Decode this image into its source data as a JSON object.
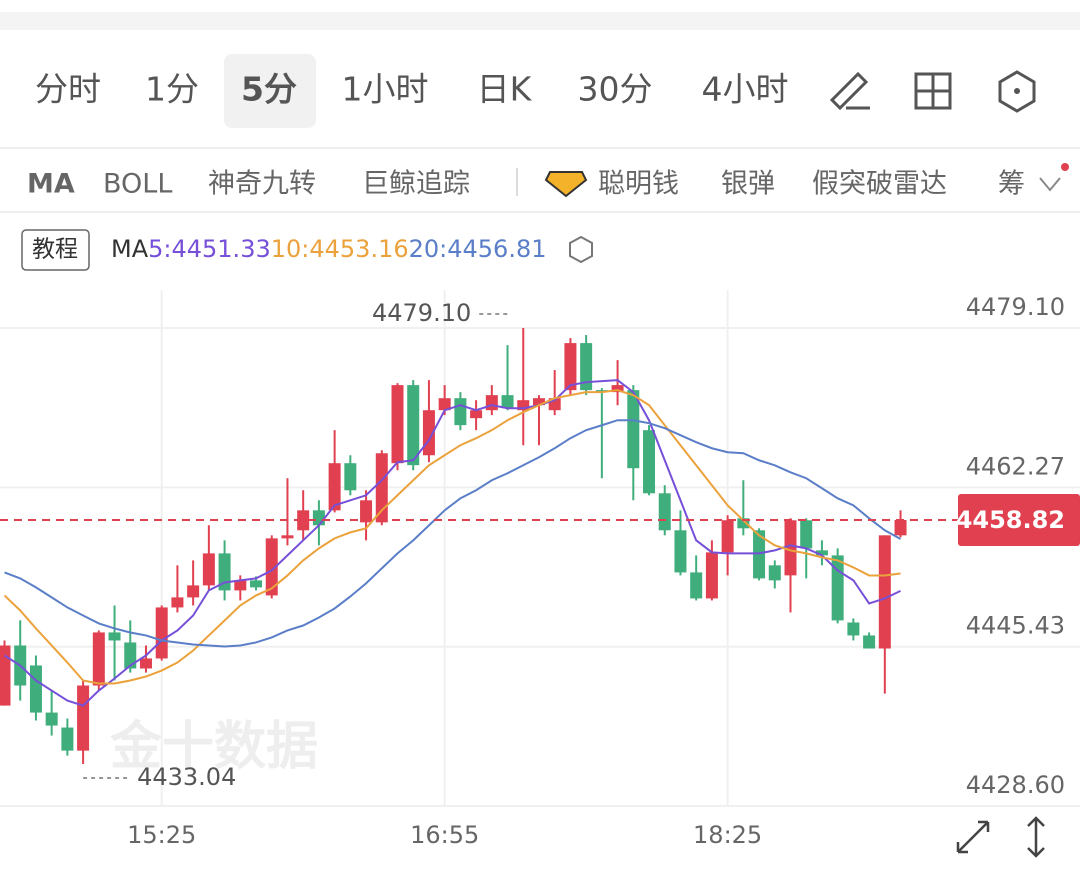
{
  "tabs": [
    "分时",
    "1分",
    "5分",
    "1小时",
    "日K",
    "30分",
    "4小时"
  ],
  "selected_tab": 2,
  "tools": [
    "MA",
    "BOLL",
    "神奇九转",
    "巨鲸追踪",
    "聪明钱",
    "银弹",
    "假突破雷达",
    "筹"
  ],
  "tutorial": "教程",
  "watermark": "金十数据",
  "chart_data": {
    "type": "candlestick",
    "indicator": "MA",
    "categories": [
      null,
      null,
      null,
      null,
      null,
      null,
      null,
      null,
      null,
      null,
      "15:25",
      null,
      null,
      null,
      null,
      null,
      null,
      null,
      null,
      null,
      null,
      null,
      null,
      null,
      null,
      null,
      null,
      null,
      "16:55",
      null,
      null,
      null,
      null,
      null,
      null,
      null,
      null,
      null,
      null,
      null,
      null,
      null,
      null,
      null,
      null,
      null,
      "18:25",
      null,
      null,
      null,
      null,
      null,
      null,
      null,
      null,
      null,
      null,
      null
    ],
    "candles": {
      "open": [
        4439.21,
        4445.56,
        4443.45,
        4438.47,
        4436.89,
        4434.45,
        4441.33,
        4446.94,
        4445.88,
        4443.13,
        4444.19,
        4449.58,
        4450.64,
        4451.91,
        4455.29,
        4451.38,
        4452.44,
        4450.85,
        4456.88,
        4457.73,
        4459.84,
        4459.84,
        4464.82,
        4458.57,
        4458.57,
        4464.82,
        4473.07,
        4465.66,
        4470.42,
        4471.69,
        4469.58,
        4470.42,
        4472.01,
        4470.42,
        4470.95,
        4470.42,
        4472.54,
        4477.51,
        4472.54,
        4472.33,
        4472.54,
        4468.31,
        4461.64,
        4457.73,
        4453.28,
        4450.53,
        4455.4,
        4459.0,
        4457.73,
        4454.03,
        4452.97,
        4458.79,
        4455.61,
        4455.08,
        4447.99,
        4446.62,
        4445.24,
        4457.2
      ],
      "high": [
        4446.09,
        4448.21,
        4444.5,
        4440.8,
        4437.84,
        4441.86,
        4447.15,
        4449.79,
        4448.21,
        4445.56,
        4449.79,
        4454.03,
        4454.55,
        4458.26,
        4456.67,
        4452.97,
        4452.86,
        4457.2,
        4463.23,
        4461.96,
        4460.9,
        4468.31,
        4465.66,
        4461.96,
        4466.19,
        4473.28,
        4473.6,
        4473.6,
        4473.07,
        4472.33,
        4471.48,
        4473.07,
        4477.3,
        4479.1,
        4472.01,
        4474.66,
        4478.04,
        4478.36,
        4472.75,
        4475.71,
        4473.07,
        4468.84,
        4462.49,
        4459.84,
        4455.08,
        4456.67,
        4459.32,
        4463.02,
        4457.94,
        4454.55,
        4459.0,
        4459.0,
        4456.67,
        4455.82,
        4448.42,
        4446.94,
        4457.2,
        4459.84
      ],
      "low": [
        4439.21,
        4439.74,
        4437.63,
        4436.04,
        4433.92,
        4433.04,
        4440.8,
        4441.86,
        4442.7,
        4442.7,
        4443.97,
        4449.05,
        4449.79,
        4451.38,
        4450.32,
        4450.32,
        4451.38,
        4450.53,
        4456.14,
        4456.67,
        4456.14,
        4459.63,
        4461.43,
        4456.67,
        4458.26,
        4464.08,
        4464.08,
        4464.92,
        4469.9,
        4468.31,
        4468.31,
        4469.9,
        4470.42,
        4466.72,
        4466.72,
        4469.9,
        4472.01,
        4472.01,
        4463.23,
        4470.95,
        4460.9,
        4461.43,
        4457.2,
        4452.97,
        4450.32,
        4450.32,
        4452.97,
        4457.2,
        4452.44,
        4451.59,
        4449.05,
        4452.65,
        4454.03,
        4447.89,
        4446.09,
        4445.24,
        4440.48,
        4456.99
      ],
      "close": [
        4445.56,
        4441.33,
        4438.47,
        4437.1,
        4434.45,
        4441.33,
        4446.94,
        4446.09,
        4443.13,
        4444.19,
        4449.58,
        4450.64,
        4451.91,
        4455.29,
        4451.38,
        4452.44,
        4451.7,
        4456.88,
        4457.2,
        4459.84,
        4458.26,
        4464.82,
        4461.96,
        4460.9,
        4465.87,
        4473.07,
        4464.61,
        4470.42,
        4471.69,
        4468.84,
        4470.42,
        4472.01,
        4470.64,
        4471.48,
        4471.69,
        4471.69,
        4477.51,
        4472.54,
        4472.33,
        4473.07,
        4464.29,
        4461.64,
        4457.73,
        4453.28,
        4450.53,
        4455.4,
        4458.79,
        4457.94,
        4452.65,
        4452.44,
        4458.79,
        4455.82,
        4455.08,
        4448.21,
        4446.62,
        4445.24,
        4457.2,
        4458.82
      ]
    },
    "up_color": "#e0404f",
    "down_color": "#3fae7c",
    "series": [
      {
        "name": "5:4451.33",
        "color": "#7650d8",
        "values": [
          4444.5,
          4443.44,
          4441.86,
          4440.8,
          4439.74,
          4439.21,
          4440.8,
          4442.07,
          4443.44,
          4444.5,
          4446.09,
          4447.15,
          4448.73,
          4451.38,
          4452.22,
          4452.44,
          4452.65,
          4453.49,
          4455.08,
          4456.67,
          4458.25,
          4460.37,
          4460.9,
          4461.43,
          4463.02,
          4464.92,
          4465.13,
          4467.25,
          4470.42,
          4470.95,
          4470.42,
          4470.95,
          4470.63,
          4470.63,
          4470.95,
          4471.48,
          4473.07,
          4473.38,
          4473.49,
          4473.6,
          4472.33,
          4469.36,
          4465.13,
          4460.9,
          4456.67,
          4455.4,
          4455.29,
          4455.29,
          4455.29,
          4455.61,
          4456.14,
          4455.82,
          4455.08,
          4453.49,
          4452.44,
          4450.0,
          4450.53,
          4451.33
        ]
      },
      {
        "name": "10:4453.16",
        "color": "#eba23c",
        "values": [
          4450.85,
          4449.26,
          4447.36,
          4445.56,
          4443.76,
          4441.86,
          4441.54,
          4441.54,
          4441.86,
          4442.28,
          4442.91,
          4443.76,
          4445.03,
          4446.62,
          4448.2,
          4449.79,
          4450.85,
          4451.59,
          4452.96,
          4454.55,
          4455.82,
          4456.88,
          4457.51,
          4457.94,
          4459.84,
          4461.43,
          4463.02,
          4464.6,
          4465.66,
          4466.72,
          4467.46,
          4468.31,
          4469.36,
          4470.21,
          4470.95,
          4471.69,
          4472.01,
          4472.33,
          4472.33,
          4472.54,
          4472.01,
          4470.95,
          4468.83,
          4466.72,
          4464.6,
          4462.49,
          4460.37,
          4458.78,
          4457.2,
          4456.14,
          4455.61,
          4455.29,
          4454.87,
          4454.55,
          4453.81,
          4452.96,
          4452.96,
          4453.16
        ]
      },
      {
        "name": "20:4456.81",
        "color": "#5b7ec8",
        "values": [
          4453.28,
          4452.65,
          4451.7,
          4450.64,
          4449.58,
          4448.73,
          4447.89,
          4447.36,
          4446.93,
          4446.62,
          4446.09,
          4445.88,
          4445.66,
          4445.56,
          4445.45,
          4445.56,
          4445.88,
          4446.41,
          4447.15,
          4447.67,
          4448.52,
          4449.47,
          4450.74,
          4452.12,
          4453.71,
          4455.29,
          4456.67,
          4458.25,
          4459.84,
          4461.11,
          4461.96,
          4463.02,
          4463.76,
          4464.6,
          4465.45,
          4466.4,
          4467.46,
          4468.31,
          4468.83,
          4469.36,
          4469.36,
          4469.05,
          4468.52,
          4467.78,
          4467.04,
          4466.4,
          4465.98,
          4465.87,
          4465.13,
          4464.6,
          4463.86,
          4463.23,
          4462.17,
          4461.11,
          4460.37,
          4459.0,
          4457.73,
          4456.81
        ]
      }
    ],
    "ylim": [
      4428.6,
      4483.12
    ],
    "yticks": [
      {
        "value": 4479.1,
        "label": "4479.10"
      },
      4462.27,
      4445.43,
      {
        "value": 4428.6,
        "label": "4428.60"
      }
    ],
    "grid": true,
    "last_price": 4458.82,
    "max_label": "4479.10",
    "min_label": "4433.04"
  }
}
